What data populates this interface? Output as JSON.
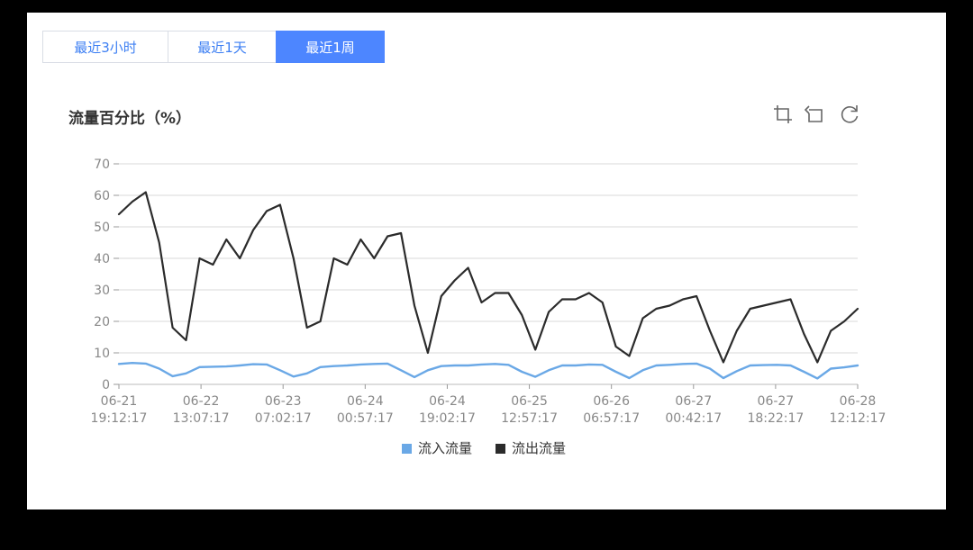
{
  "tabs": [
    {
      "label": "最近3小时",
      "active": false
    },
    {
      "label": "最近1天",
      "active": false
    },
    {
      "label": "最近1周",
      "active": true
    }
  ],
  "toolbar": {
    "icons": [
      "crop-zoom-icon",
      "undo-zoom-icon",
      "refresh-icon"
    ]
  },
  "colors": {
    "accent": "#4d86ff",
    "inflow": "#6aa8e6",
    "outflow": "#2b2b2b"
  },
  "chart_data": {
    "type": "line",
    "title": "流量百分比（%）",
    "xlabel": "",
    "ylabel": "",
    "ylim": [
      0,
      70
    ],
    "yticks": [
      0,
      10,
      20,
      30,
      40,
      50,
      60,
      70
    ],
    "grid": true,
    "legend_position": "bottom",
    "x_tick_labels": [
      [
        "06-21",
        "19:12:17"
      ],
      [
        "06-22",
        "13:07:17"
      ],
      [
        "06-23",
        "07:02:17"
      ],
      [
        "06-24",
        "00:57:17"
      ],
      [
        "06-24",
        "19:02:17"
      ],
      [
        "06-25",
        "12:57:17"
      ],
      [
        "06-26",
        "06:57:17"
      ],
      [
        "06-27",
        "00:42:17"
      ],
      [
        "06-27",
        "18:22:17"
      ],
      [
        "06-28",
        "12:12:17"
      ]
    ],
    "x_hours": [
      0,
      3,
      6,
      9,
      12,
      15,
      18,
      21,
      24,
      27,
      30,
      33,
      36,
      39,
      42,
      45,
      48,
      51,
      54,
      57,
      60,
      63,
      66,
      69,
      72,
      75,
      78,
      81,
      84,
      87,
      90,
      93,
      96,
      99,
      102,
      105,
      108,
      111,
      114,
      117,
      120,
      123,
      126,
      129,
      132,
      135,
      138,
      141,
      144,
      147,
      150,
      153,
      156,
      159,
      162,
      165
    ],
    "series": [
      {
        "name": "流入流量",
        "color": "#6aa8e6",
        "values": [
          6.5,
          6.8,
          6.6,
          5.0,
          2.6,
          3.5,
          5.5,
          5.6,
          5.7,
          6.0,
          6.4,
          6.3,
          4.5,
          2.5,
          3.5,
          5.5,
          5.8,
          6.0,
          6.3,
          6.5,
          6.6,
          4.5,
          2.3,
          4.5,
          5.8,
          6.0,
          6.0,
          6.3,
          6.5,
          6.2,
          4.0,
          2.4,
          4.5,
          6.0,
          6.0,
          6.3,
          6.2,
          4.0,
          2.0,
          4.5,
          6.0,
          6.2,
          6.5,
          6.6,
          5.0,
          2.0,
          4.2,
          6.0,
          6.1,
          6.2,
          6.0,
          4.0,
          1.9,
          5.0,
          5.4,
          6.0
        ]
      },
      {
        "name": "流出流量",
        "color": "#2b2b2b",
        "values": [
          54,
          58,
          61,
          45,
          18,
          14,
          40,
          38,
          46,
          40,
          49,
          55,
          57,
          40,
          18,
          20,
          40,
          38,
          46,
          40,
          47,
          48,
          25,
          10,
          28,
          33,
          37,
          26,
          29,
          29,
          22,
          11,
          23,
          27,
          27,
          29,
          26,
          12,
          9,
          21,
          24,
          25,
          27,
          28,
          17,
          7,
          17,
          24,
          25,
          26,
          27,
          16,
          7,
          17,
          20,
          24
        ]
      }
    ]
  }
}
